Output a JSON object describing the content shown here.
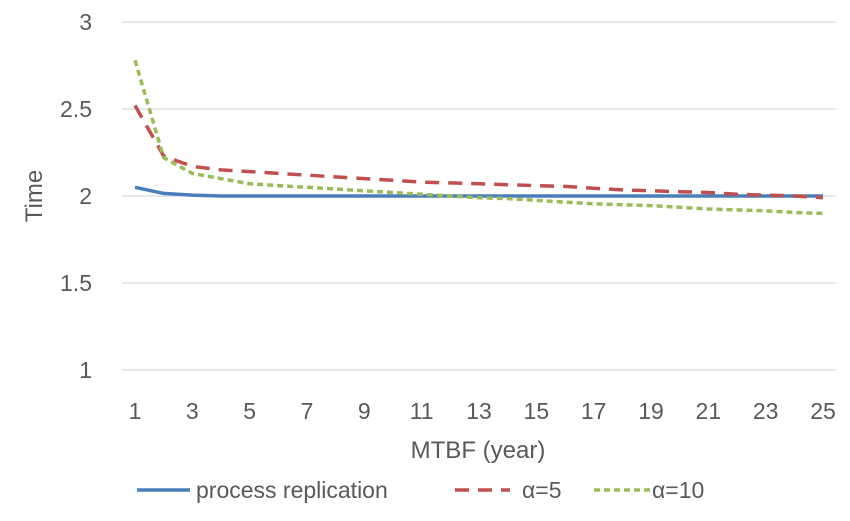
{
  "chart_data": {
    "type": "line",
    "title": "",
    "xlabel": "MTBF (year)",
    "ylabel": "Time",
    "x": [
      1,
      2,
      3,
      4,
      5,
      6,
      7,
      8,
      9,
      10,
      11,
      12,
      13,
      14,
      15,
      16,
      17,
      18,
      19,
      20,
      21,
      22,
      23,
      24,
      25
    ],
    "x_tick_labels": [
      "1",
      "3",
      "5",
      "7",
      "9",
      "11",
      "13",
      "15",
      "17",
      "19",
      "21",
      "23",
      "25"
    ],
    "y_tick_labels": [
      "1",
      "1.5",
      "2",
      "2.5",
      "3"
    ],
    "ylim": [
      1,
      3
    ],
    "grid": "horizontal",
    "legend": "bottom",
    "series": [
      {
        "name": "process replication",
        "color": "#4a7ebb",
        "style": "solid",
        "values": [
          2.05,
          2.015,
          2.005,
          2.0,
          2.0,
          2.0,
          2.0,
          2.0,
          2.0,
          2.0,
          2.0,
          2.0,
          2.0,
          2.0,
          2.0,
          2.0,
          2.0,
          2.0,
          2.0,
          2.0,
          2.0,
          2.0,
          2.0,
          2.0,
          2.0
        ]
      },
      {
        "name": "α=5",
        "color": "#c0504d",
        "style": "dashed",
        "values": [
          2.52,
          2.23,
          2.17,
          2.15,
          2.14,
          2.13,
          2.12,
          2.11,
          2.1,
          2.09,
          2.08,
          2.075,
          2.07,
          2.065,
          2.06,
          2.055,
          2.045,
          2.035,
          2.03,
          2.025,
          2.02,
          2.01,
          2.005,
          2.0,
          1.99
        ]
      },
      {
        "name": "α=10",
        "color": "#9bbb59",
        "style": "dotted",
        "values": [
          2.78,
          2.22,
          2.13,
          2.1,
          2.07,
          2.06,
          2.05,
          2.04,
          2.03,
          2.02,
          2.01,
          2.0,
          1.99,
          1.985,
          1.975,
          1.965,
          1.955,
          1.95,
          1.945,
          1.935,
          1.925,
          1.92,
          1.915,
          1.905,
          1.9
        ]
      }
    ]
  }
}
